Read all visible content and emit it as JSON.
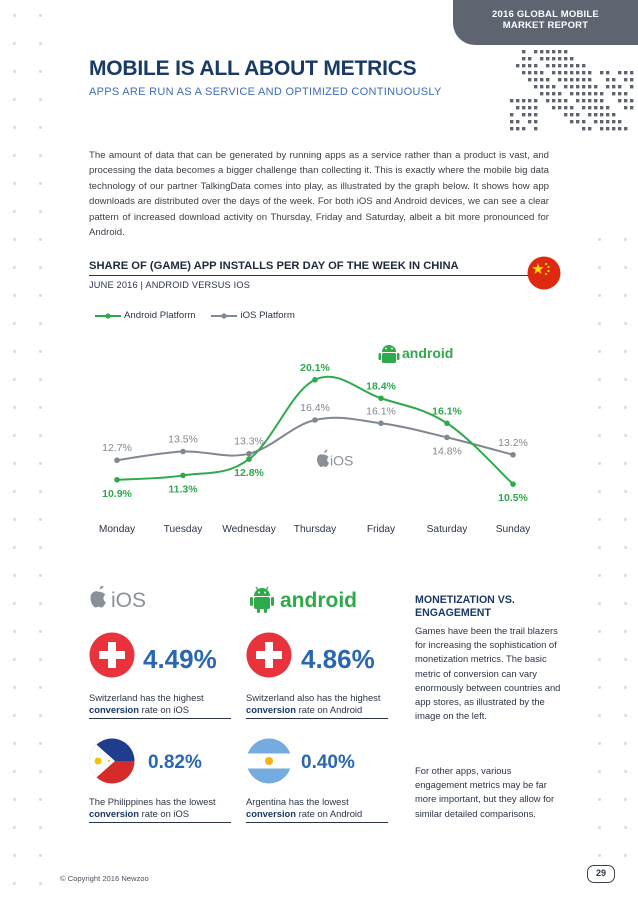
{
  "header": {
    "report_line1": "2016 GLOBAL MOBILE",
    "report_line2": "MARKET REPORT",
    "title": "MOBILE IS ALL ABOUT METRICS",
    "subtitle": "APPS ARE RUN AS A SERVICE AND OPTIMIZED CONTINUOUSLY"
  },
  "intro": "The amount of data that can be generated by running apps as a service rather than a product is vast, and processing the data becomes a bigger challenge than collecting it. This is exactly where the mobile big data technology of our partner TalkingData comes into play, as illustrated by the graph below. It shows how app downloads are distributed over the days of the week. For both iOS and Android devices, we can see a clear pattern of increased download activity on Thursday, Friday and Saturday, albeit a bit more pronounced for Android.",
  "chart": {
    "title": "SHARE OF (GAME) APP INSTALLS PER DAY OF THE WEEK IN CHINA",
    "subtitle": "JUNE 2016 | ANDROID VERSUS IOS",
    "android_label": "android",
    "ios_label": "iOS"
  },
  "chart_data": {
    "type": "line",
    "title": "SHARE OF (GAME) APP INSTALLS PER DAY OF THE WEEK IN CHINA",
    "subtitle": "JUNE 2016 | ANDROID VERSUS IOS",
    "categories": [
      "Monday",
      "Tuesday",
      "Wednesday",
      "Thursday",
      "Friday",
      "Saturday",
      "Sunday"
    ],
    "series": [
      {
        "name": "Android Platform",
        "color": "#2eaa4a",
        "values": [
          10.9,
          11.3,
          12.8,
          20.1,
          18.4,
          16.1,
          10.5
        ],
        "labels": [
          "10.9%",
          "11.3%",
          "12.8%",
          "20.1%",
          "18.4%",
          "16.1%",
          "10.5%"
        ]
      },
      {
        "name": "iOS Platform",
        "color": "#808891",
        "values": [
          12.7,
          13.5,
          13.3,
          16.4,
          16.1,
          14.8,
          13.2
        ],
        "labels": [
          "12.7%",
          "13.5%",
          "13.3%",
          "16.4%",
          "16.1%",
          "14.8%",
          "13.2%"
        ]
      }
    ],
    "ylim": [
      9.5,
      21
    ],
    "legend": "top-left",
    "grid": false,
    "xlabel": "",
    "ylabel": ""
  },
  "brands": {
    "ios": "iOS",
    "android": "android"
  },
  "metrics": [
    {
      "value": "4.49%",
      "desc_pre": "Switzerland has the highest",
      "desc_bold": "conversion",
      "desc_post": "rate on iOS"
    },
    {
      "value": "4.86%",
      "desc_pre": "Switzerland also has the highest",
      "desc_bold": "conversion",
      "desc_post": "rate on Android"
    },
    {
      "value": "0.82%",
      "desc_pre": "The Philippines has the lowest",
      "desc_bold": "conversion",
      "desc_post": "rate on iOS"
    },
    {
      "value": "0.40%",
      "desc_pre": "Argentina has the lowest",
      "desc_bold": "conversion",
      "desc_post": "rate on Android"
    }
  ],
  "side": {
    "title": "MONETIZATION VS. ENGAGEMENT",
    "p1": "Games have been the trail blazers for increasing the sophistication of monetization metrics. The basic metric of conversion can vary enormously between countries and app stores, as illustrated by the image on the left.",
    "p2": "For other apps, various engagement metrics may be far more important, but they allow for similar detailed comparisons."
  },
  "footer": {
    "copyright": "© Copyright 2016 Newzoo",
    "page": "29"
  },
  "colors": {
    "navy": "#193a66",
    "blue": "#2a67b3",
    "android_green": "#2eaa4a",
    "ios_gray": "#808891",
    "tab_gray": "#5e6570"
  }
}
